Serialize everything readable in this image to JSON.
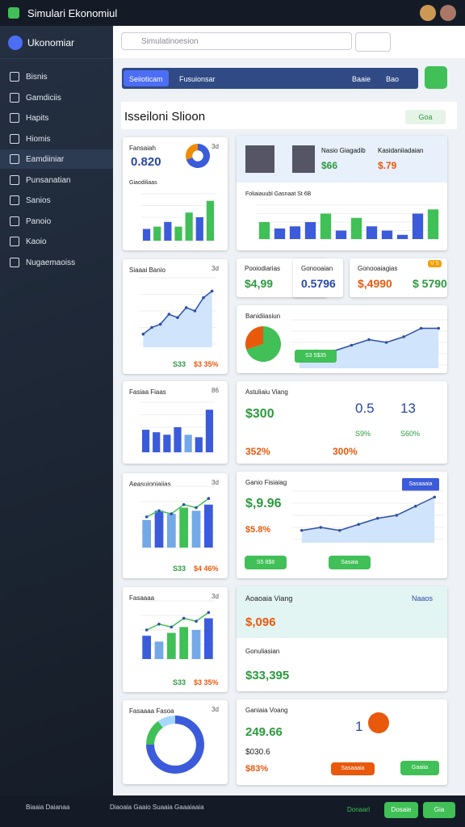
{
  "top_bar": {
    "title": "Simulari Ekonomiul"
  },
  "header": {
    "brand": "Ukonomiar",
    "search_placeholder": "Simulatinoesion"
  },
  "sidebar": {
    "items": [
      "Bisnis",
      "Gamdiciis",
      "Hapits",
      "Hiomis",
      "Eamdiiniar",
      "Punsanatian",
      "Sanios",
      "Panoio",
      "Kaoio",
      "Nugaemaoiss"
    ]
  },
  "tabs": [
    "Seiioticam",
    "Fusuionsar",
    "Baaie",
    "Bao"
  ],
  "section": {
    "title": "Isseiloni Slioon",
    "button": "Goa"
  },
  "left_cards": [
    {
      "title": "Fansaiah",
      "value": "0.820",
      "subtitle": "Giaodiliaas",
      "tag": "3d",
      "donut": {
        "values": [
          70,
          30
        ],
        "colors": [
          "#3b5bdb",
          "#f08c00"
        ]
      },
      "chart": {
        "values": [
          5,
          6,
          8,
          6,
          12,
          10,
          17
        ],
        "ylim": [
          0,
          20
        ],
        "colors": [
          "#3b5bdb",
          "#40c057",
          "#3b5bdb",
          "#40c057",
          "#40c057",
          "#3b5bdb",
          "#40c057"
        ]
      }
    },
    {
      "title": "Siaaai Banio",
      "tag": "3d",
      "foot": [
        "S33",
        "$3 35%"
      ],
      "chart": {
        "line": [
          3,
          5,
          6,
          9,
          8,
          11,
          10,
          14,
          16
        ],
        "ylim": [
          0,
          20
        ]
      }
    },
    {
      "title": "Fasiaa Fiaas",
      "tag": "86",
      "chart": {
        "values": [
          9,
          8,
          7,
          10,
          7,
          6,
          17
        ],
        "ylim": [
          0,
          20
        ],
        "colors": [
          "#3b5bdb",
          "#3b5bdb",
          "#3b5bdb",
          "#3b5bdb",
          "#74a9e8",
          "#3b5bdb",
          "#3b5bdb"
        ]
      }
    },
    {
      "title": "Aeasuioniaiias",
      "tag": "3d",
      "foot": [
        "S33",
        "$4 46%"
      ],
      "chart": {
        "values": [
          9,
          12,
          11,
          13,
          12,
          14
        ],
        "line": [
          10,
          12,
          11,
          14,
          13,
          16
        ],
        "ylim": [
          0,
          20
        ],
        "colors": [
          "#74a9e8",
          "#3b5bdb",
          "#74a9e8",
          "#40c057",
          "#74a9e8",
          "#3b5bdb"
        ]
      }
    },
    {
      "title": "Fasaaaa",
      "tag": "3d",
      "foot": [
        "S33",
        "$3 35%"
      ],
      "chart": {
        "values": [
          8,
          6,
          9,
          11,
          10,
          14
        ],
        "line": [
          10,
          12,
          11,
          14,
          13,
          16
        ],
        "ylim": [
          0,
          20
        ],
        "colors": [
          "#3b5bdb",
          "#74a9e8",
          "#40c057",
          "#40c057",
          "#74a9e8",
          "#3b5bdb"
        ]
      }
    },
    {
      "title": "Fasaaaa Fasoa",
      "tag": "3d",
      "donut": {
        "values": [
          75,
          15,
          10
        ],
        "colors": [
          "#3b5bdb",
          "#40c057",
          "#a5d8ff"
        ]
      }
    }
  ],
  "right_cards": [
    {
      "labels": [
        "Nasio Giagadib",
        "Kasidaniiadaian"
      ],
      "values": [
        "$66",
        "$.79"
      ],
      "chart_title": "Foliaiauubl Gasnaat St 6B",
      "chart": {
        "values": [
          8,
          5,
          6,
          8,
          12,
          4,
          10,
          6,
          4,
          2,
          12,
          14
        ],
        "ylim": [
          0,
          16
        ],
        "colors": [
          "#40c057",
          "#3b5bdb",
          "#3b5bdb",
          "#3b5bdb",
          "#40c057",
          "#3b5bdb",
          "#40c057",
          "#3b5bdb",
          "#3b5bdb",
          "#3b5bdb",
          "#3b5bdb",
          "#40c057"
        ]
      }
    },
    {
      "minis": [
        {
          "title": "Pooiodiarias",
          "value": "$4,99"
        },
        {
          "title": "Gonooaian",
          "value": "0.5796"
        },
        {
          "title": "Gonooaiagias",
          "value": "$,4990",
          "value2": "$ 5790",
          "tag": "V 5"
        }
      ]
    },
    {
      "title": "Banidiiasiun",
      "button": "S3 5$35",
      "pie": {
        "values": [
          70,
          30
        ],
        "colors": [
          "#40c057",
          "#e8590c"
        ]
      },
      "chart": {
        "line": [
          4,
          5,
          5,
          7,
          9,
          8,
          10,
          13,
          13
        ],
        "ylim": [
          0,
          16
        ]
      }
    },
    {
      "title": "Astuliaiu Viang",
      "value": "$300",
      "stats": [
        "0.5",
        "13"
      ],
      "subs": [
        "S9%",
        "S60%"
      ],
      "foot": [
        "352%",
        "300%"
      ]
    },
    {
      "title": "Ganio Fisiaiag",
      "value": "$,9.96",
      "value2": "$5.8%",
      "tag": "Sasaaaia",
      "buttons": [
        "S5 8$8",
        "Sasaia"
      ],
      "chart": {
        "line": [
          3,
          4,
          3,
          5,
          7,
          8,
          11,
          14
        ],
        "ylim": [
          0,
          16
        ]
      }
    },
    {
      "title": "Aoaoaia Viang",
      "tag": "Naaos",
      "value": "$,096",
      "title2": "Gonuliasian",
      "value2": "$33,395"
    },
    {
      "title": "Ganiaia Voang",
      "value": "249.66",
      "value2": "$030.6",
      "value3": "$83%",
      "stat": "1",
      "buttons": [
        "Sasaaaia",
        "Gaaiia"
      ]
    }
  ],
  "bottom_bar": {
    "left": "Biaaia Daianaa",
    "middle": "Diaoaia Gaaio Suaaia Gaaaiaaia",
    "buttons": [
      "Donaarl",
      "Dosaie",
      "Gia"
    ]
  }
}
